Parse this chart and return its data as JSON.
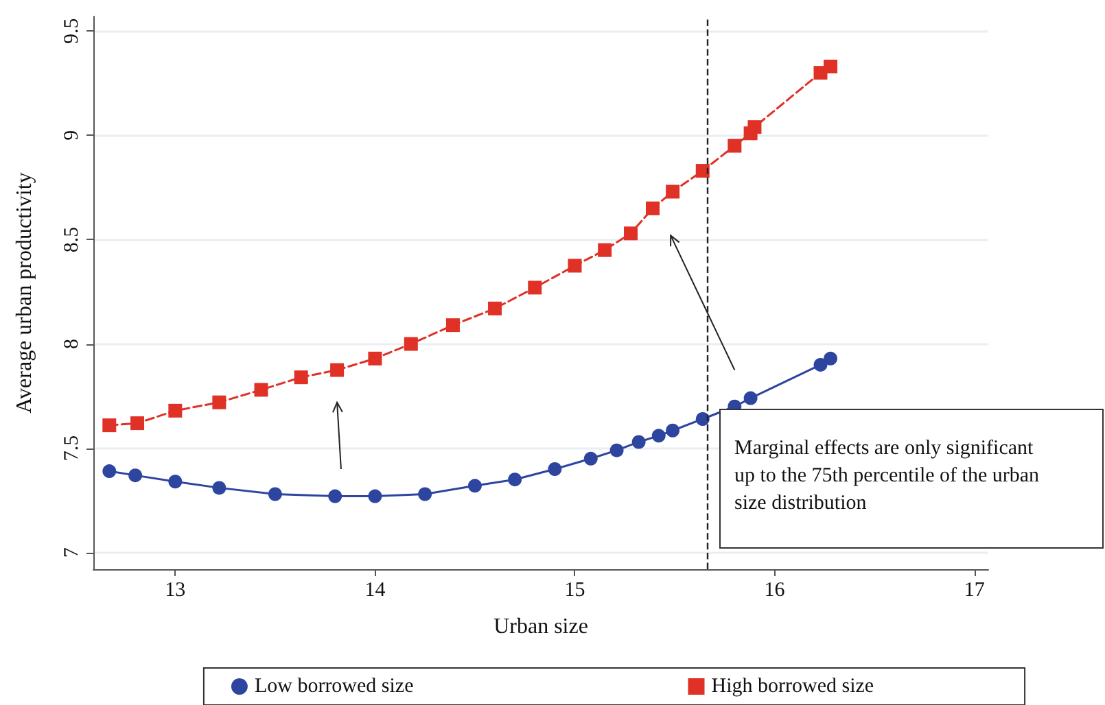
{
  "chart_data": {
    "type": "line",
    "xlabel": "Urban size",
    "ylabel": "Average urban productivity",
    "xlim": [
      12.59,
      17.07
    ],
    "xticks": [
      13,
      14,
      15,
      16,
      17
    ],
    "ylim": [
      6.92,
      9.57
    ],
    "yticks": [
      7,
      7.5,
      8,
      8.5,
      9,
      9.5
    ],
    "grid": "y",
    "legend": "bottom",
    "series": [
      {
        "name": "Low borrowed size",
        "color": "#2e45a0",
        "marker": "circle",
        "line_style": "solid",
        "x": [
          12.67,
          12.8,
          13.0,
          13.22,
          13.5,
          13.8,
          14.0,
          14.25,
          14.5,
          14.7,
          14.9,
          15.08,
          15.21,
          15.32,
          15.42,
          15.49,
          15.64,
          15.8,
          15.88,
          16.23,
          16.28
        ],
        "values": [
          7.39,
          7.37,
          7.34,
          7.31,
          7.28,
          7.27,
          7.27,
          7.28,
          7.32,
          7.35,
          7.4,
          7.45,
          7.49,
          7.53,
          7.56,
          7.585,
          7.64,
          7.7,
          7.74,
          7.9,
          7.93
        ]
      },
      {
        "name": "High borrowed size",
        "color": "#e03127",
        "marker": "square",
        "line_style": "dashed",
        "x": [
          12.67,
          12.81,
          13.0,
          13.22,
          13.43,
          13.63,
          13.81,
          14.0,
          14.18,
          14.39,
          14.6,
          14.8,
          15.0,
          15.15,
          15.28,
          15.39,
          15.49,
          15.64,
          15.8,
          15.88,
          15.9,
          16.23,
          16.28
        ],
        "values": [
          7.61,
          7.62,
          7.68,
          7.72,
          7.78,
          7.84,
          7.875,
          7.93,
          8.0,
          8.09,
          8.17,
          8.27,
          8.375,
          8.45,
          8.53,
          8.65,
          8.73,
          8.83,
          8.95,
          9.01,
          9.04,
          9.3,
          9.33
        ]
      }
    ],
    "ref_lines": [
      {
        "axis": "x",
        "value": 15.66,
        "color": "#222222",
        "line_style": "dashed"
      }
    ],
    "annotations": [
      "Marginal effects are only significant\nup to the 75th percentile of the urban\nsize distribution"
    ]
  }
}
